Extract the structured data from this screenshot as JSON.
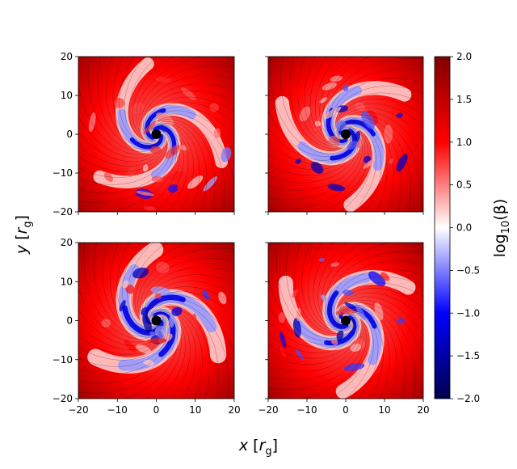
{
  "chart_data": [
    {
      "type": "heatmap",
      "panel": "top-left",
      "x_range": [
        -20,
        20
      ],
      "y_range": [
        -20,
        20
      ],
      "x_ticks": [],
      "y_ticks": [
        "20",
        "10",
        "0",
        "−10",
        "−20"
      ],
      "colorbar_range": [
        -2.0,
        2.0
      ],
      "overlay": "magnetic field streamlines",
      "central_marker": "black hole at origin"
    },
    {
      "type": "heatmap",
      "panel": "top-right",
      "x_range": [
        -20,
        20
      ],
      "y_range": [
        -20,
        20
      ],
      "x_ticks": [],
      "y_ticks": [],
      "colorbar_range": [
        -2.0,
        2.0
      ],
      "overlay": "magnetic field streamlines",
      "central_marker": "black hole at origin"
    },
    {
      "type": "heatmap",
      "panel": "bottom-left",
      "x_range": [
        -20,
        20
      ],
      "y_range": [
        -20,
        20
      ],
      "x_ticks": [
        "−20",
        "−10",
        "0",
        "10",
        "20"
      ],
      "y_ticks": [
        "20",
        "10",
        "0",
        "−10",
        "−20"
      ],
      "colorbar_range": [
        -2.0,
        2.0
      ],
      "overlay": "magnetic field streamlines",
      "central_marker": "black hole at origin"
    },
    {
      "type": "heatmap",
      "panel": "bottom-right",
      "x_range": [
        -20,
        20
      ],
      "y_range": [
        -20,
        20
      ],
      "x_ticks": [
        "−20",
        "−10",
        "0",
        "10",
        "20"
      ],
      "y_ticks": [],
      "colorbar_range": [
        -2.0,
        2.0
      ],
      "overlay": "magnetic field streamlines",
      "central_marker": "black hole at origin"
    }
  ],
  "labels": {
    "xlabel_main": "x",
    "xlabel_sub": "g",
    "ylabel_main": "y",
    "ylabel_sub": "g",
    "r": "r",
    "colorbar_label_pre": "log",
    "colorbar_label_sub": "10",
    "colorbar_label_post": "(β)"
  },
  "colorbar": {
    "colormap": "seismic",
    "ticks": [
      "2.0",
      "1.5",
      "1.0",
      "0.5",
      "0.0",
      "−0.5",
      "−1.0",
      "−1.5",
      "−2.0"
    ],
    "colors": [
      "#00004c",
      "#0000ff",
      "#ffffff",
      "#ff0000",
      "#800000"
    ]
  }
}
